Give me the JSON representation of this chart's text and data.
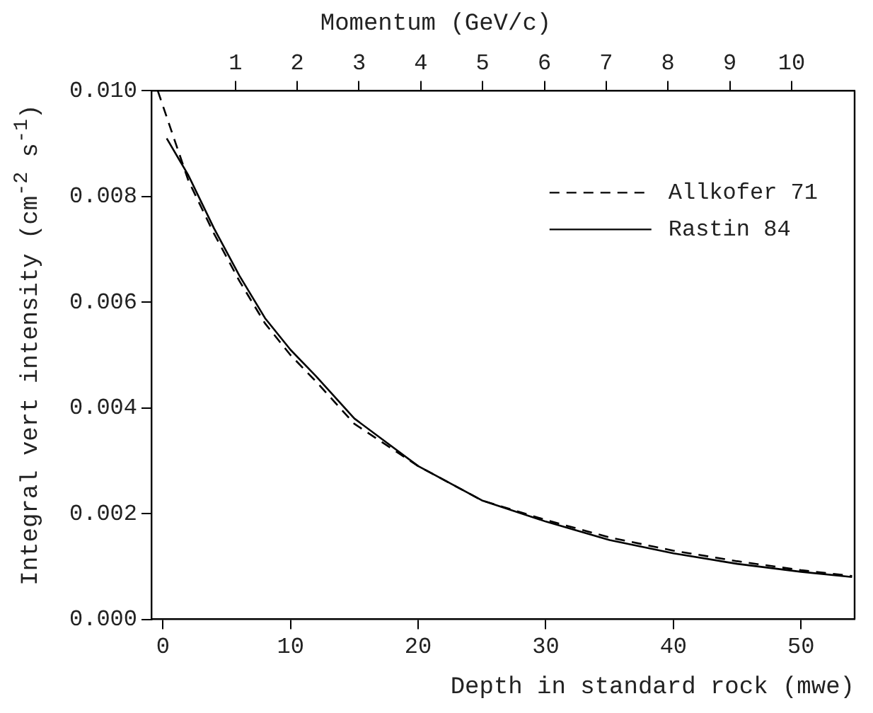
{
  "chart_data": {
    "type": "line",
    "xlabel": "Depth in standard rock (mwe)",
    "x2label": "Momentum (GeV/c)",
    "ylabel": "Integral vert intensity (cm$^{-2}$ s$^{-1}$)",
    "xlim": [
      -0.9,
      54.2
    ],
    "xticks": [
      0,
      10,
      20,
      30,
      40,
      50
    ],
    "x2lim": [
      -0.36,
      11.02
    ],
    "x2ticks": [
      1,
      2,
      3,
      4,
      5,
      6,
      7,
      8,
      9,
      10
    ],
    "ylim": [
      0,
      0.01
    ],
    "yticks": [
      {
        "value": 0,
        "label": "0.000"
      },
      {
        "value": 0.002,
        "label": "0.002"
      },
      {
        "value": 0.004,
        "label": "0.004"
      },
      {
        "value": 0.006,
        "label": "0.006"
      },
      {
        "value": 0.008,
        "label": "0.008"
      },
      {
        "value": 0.01,
        "label": "0.010"
      }
    ],
    "grid": false,
    "legend": "top right",
    "marker": "none",
    "series": [
      {
        "name": "Allkofer 71",
        "color": "#000000",
        "line_style": "dashed",
        "x": [
          -0.4,
          2,
          4,
          6,
          8,
          10,
          12,
          15,
          20,
          25,
          30,
          35,
          40,
          45,
          50,
          54
        ],
        "values": [
          0.01,
          0.0083,
          0.0073,
          0.0064,
          0.0056,
          0.005,
          0.0045,
          0.0037,
          0.0029,
          0.00225,
          0.00188,
          0.00155,
          0.0013,
          0.0011,
          0.00093,
          0.00082
        ]
      },
      {
        "name": "Rastin 84",
        "color": "#000000",
        "line_style": "solid",
        "x": [
          0.3,
          2,
          4,
          6,
          8,
          10,
          12,
          15,
          20,
          25,
          30,
          35,
          40,
          45,
          50,
          54
        ],
        "values": [
          0.0091,
          0.0084,
          0.0074,
          0.0065,
          0.0057,
          0.0051,
          0.0046,
          0.0038,
          0.0029,
          0.00225,
          0.00185,
          0.0015,
          0.00125,
          0.00105,
          0.0009,
          0.0008
        ]
      }
    ]
  }
}
